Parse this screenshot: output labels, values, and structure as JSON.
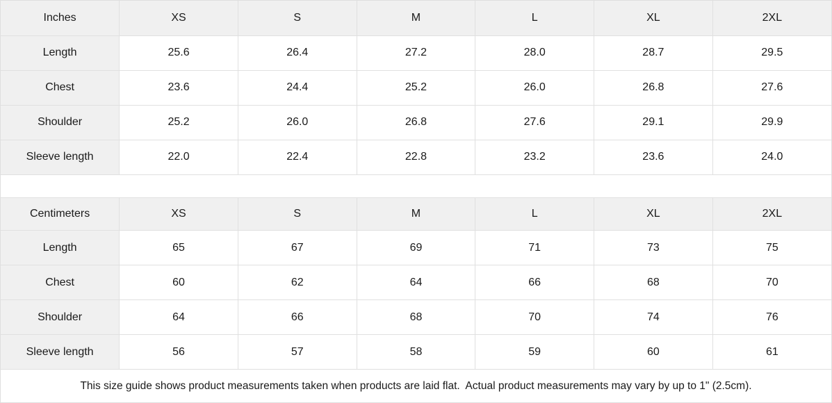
{
  "tables": [
    {
      "name": "inches",
      "unit_label": "Inches",
      "sizes": [
        "XS",
        "S",
        "M",
        "L",
        "XL",
        "2XL"
      ],
      "rows": [
        {
          "label": "Length",
          "values": [
            "25.6",
            "26.4",
            "27.2",
            "28.0",
            "28.7",
            "29.5"
          ]
        },
        {
          "label": "Chest",
          "values": [
            "23.6",
            "24.4",
            "25.2",
            "26.0",
            "26.8",
            "27.6"
          ]
        },
        {
          "label": "Shoulder",
          "values": [
            "25.2",
            "26.0",
            "26.8",
            "27.6",
            "29.1",
            "29.9"
          ]
        },
        {
          "label": "Sleeve length",
          "values": [
            "22.0",
            "22.4",
            "22.8",
            "23.2",
            "23.6",
            "24.0"
          ]
        }
      ]
    },
    {
      "name": "centimeters",
      "unit_label": "Centimeters",
      "sizes": [
        "XS",
        "S",
        "M",
        "L",
        "XL",
        "2XL"
      ],
      "rows": [
        {
          "label": "Length",
          "values": [
            "65",
            "67",
            "69",
            "71",
            "73",
            "75"
          ]
        },
        {
          "label": "Chest",
          "values": [
            "60",
            "62",
            "64",
            "66",
            "68",
            "70"
          ]
        },
        {
          "label": "Shoulder",
          "values": [
            "64",
            "66",
            "68",
            "70",
            "74",
            "76"
          ]
        },
        {
          "label": "Sleeve length",
          "values": [
            "56",
            "57",
            "58",
            "59",
            "60",
            "61"
          ]
        }
      ]
    }
  ],
  "footer": {
    "note": "This size guide shows product measurements taken when products are laid flat.  Actual product measurements may vary by up to 1\" (2.5cm)."
  },
  "colors": {
    "header_bg": "#f0f0f0",
    "cell_bg": "#ffffff",
    "border": "#e0e0e0",
    "text": "#1a1a1a"
  }
}
